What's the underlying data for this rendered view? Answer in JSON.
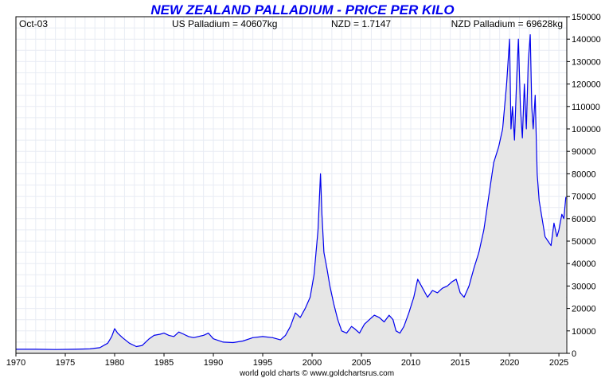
{
  "chart_data": {
    "type": "area",
    "title": "NEW ZEALAND PALLADIUM - PRICE PER KILO",
    "header": {
      "date": "Oct-03",
      "us_palladium": "US Palladium = 40607kg",
      "nzd": "NZD = 1.7147",
      "nzd_palladium": "NZD Palladium = 69628kg"
    },
    "footer": "world gold charts © www.goldchartsrus.com",
    "xlim": [
      1970,
      2025.8
    ],
    "ylim": [
      0,
      150000
    ],
    "x_ticks": [
      1970,
      1975,
      1980,
      1985,
      1990,
      1995,
      2000,
      2005,
      2010,
      2015,
      2020,
      2025
    ],
    "y_ticks": [
      0,
      10000,
      20000,
      30000,
      40000,
      50000,
      60000,
      70000,
      80000,
      90000,
      100000,
      110000,
      120000,
      130000,
      140000,
      150000
    ],
    "grid": true,
    "line_color": "#0000ee",
    "fill_color": "#e6e6e6",
    "series": [
      {
        "x": [
          1970,
          1972,
          1974,
          1976,
          1977.5,
          1978.5,
          1979.3,
          1979.7,
          1980.0,
          1980.3,
          1980.8,
          1981.5,
          1982.2,
          1982.8,
          1983.5,
          1984.0,
          1984.6,
          1985.0,
          1985.5,
          1986.0,
          1986.5,
          1987.0,
          1987.5,
          1988.0,
          1989.0,
          1989.5,
          1990.0,
          1991.0,
          1992.0,
          1993.0,
          1994.0,
          1995.0,
          1996.0,
          1996.8,
          1997.3,
          1997.8,
          1998.3,
          1998.8,
          1999.3,
          1999.8,
          2000.2,
          2000.6,
          2000.85,
          2001.0,
          2001.2,
          2001.5,
          2001.8,
          2002.2,
          2002.6,
          2003.0,
          2003.5,
          2004.0,
          2004.3,
          2004.8,
          2005.3,
          2005.8,
          2006.3,
          2006.8,
          2007.3,
          2007.8,
          2008.2,
          2008.5,
          2008.9,
          2009.3,
          2009.8,
          2010.3,
          2010.7,
          2011.2,
          2011.7,
          2012.2,
          2012.7,
          2013.2,
          2013.7,
          2014.2,
          2014.6,
          2015.0,
          2015.4,
          2015.9,
          2016.4,
          2016.9,
          2017.4,
          2017.9,
          2018.4,
          2018.9,
          2019.3,
          2019.7,
          2020.0,
          2020.15,
          2020.3,
          2020.5,
          2020.7,
          2020.9,
          2021.1,
          2021.3,
          2021.5,
          2021.7,
          2021.9,
          2022.1,
          2022.25,
          2022.4,
          2022.6,
          2022.8,
          2023.0,
          2023.3,
          2023.6,
          2023.9,
          2024.2,
          2024.5,
          2024.8,
          2025.0,
          2025.3,
          2025.5,
          2025.7
        ],
        "y": [
          1800,
          1800,
          1700,
          1800,
          2000,
          2500,
          4500,
          7500,
          11000,
          9000,
          7000,
          4500,
          3000,
          3500,
          6500,
          8000,
          8500,
          9000,
          8000,
          7500,
          9500,
          8500,
          7500,
          7000,
          8000,
          9000,
          6500,
          5000,
          4800,
          5500,
          7000,
          7500,
          7000,
          6000,
          8000,
          12000,
          18000,
          16000,
          20000,
          25000,
          35000,
          55000,
          80000,
          62000,
          45000,
          38000,
          30000,
          22000,
          15000,
          10000,
          9000,
          12000,
          11000,
          9000,
          13000,
          15000,
          17000,
          16000,
          14000,
          17000,
          15000,
          10000,
          9000,
          12000,
          18000,
          25000,
          33000,
          29000,
          25000,
          28000,
          27000,
          29000,
          30000,
          32000,
          33000,
          27000,
          25000,
          30000,
          38000,
          45000,
          55000,
          70000,
          85000,
          92000,
          100000,
          120000,
          140000,
          100000,
          110000,
          95000,
          120000,
          140000,
          110000,
          96000,
          120000,
          100000,
          130000,
          142000,
          110000,
          100000,
          115000,
          80000,
          68000,
          60000,
          52000,
          50000,
          48000,
          58000,
          52000,
          55000,
          62000,
          60000,
          69628
        ]
      }
    ]
  }
}
